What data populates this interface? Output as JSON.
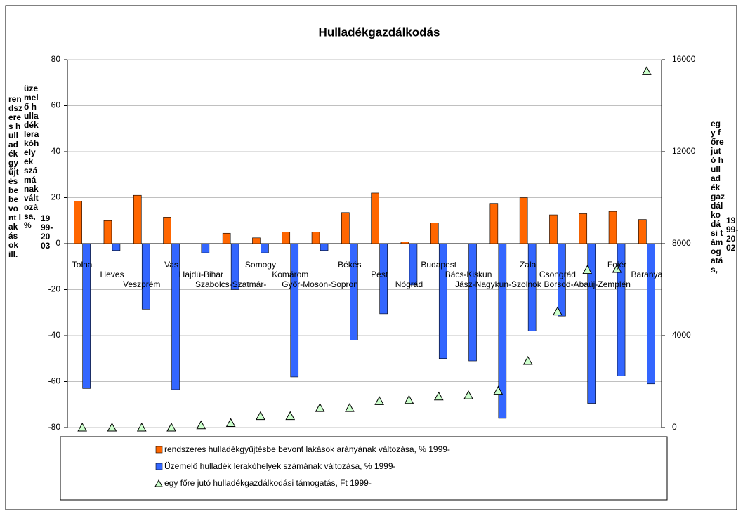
{
  "chart_data": {
    "type": "bar",
    "title": "Hulladékgazdálkodás",
    "y_label": [
      "rendszeres hulladékgyűjtésbe bevont lakások ill.",
      "üzemelő hulladéklerakóhelyek számának változása, %",
      "1999-2003"
    ],
    "y2_label": [
      "egy főre jutó hulladékgazdálkodási támogatás,",
      "1999-2002"
    ],
    "categories": [
      "Tolna",
      "Heves",
      "Veszprém",
      "Vas",
      "Hajdú-Bihar",
      "Szabolcs-Szatmár-",
      "Somogy",
      "Komárom",
      "Győr-Moson-Sopron",
      "Békés",
      "Pest",
      "Nógrád",
      "Budapest",
      "Bács-Kiskun",
      "Jász-Nagykun-Szolnok",
      "Zala",
      "Csongrád",
      "Borsod-Abaúj-Zemplén",
      "Fejér",
      "Baranya"
    ],
    "series": [
      {
        "name": "rendszeres hulladékgyűjtésbe bevont lakások arányának változása, % 1999-",
        "color": "#ff6600",
        "values": [
          18.5,
          10,
          21,
          11.5,
          0,
          4.5,
          2.5,
          5,
          5,
          13.5,
          22,
          0.8,
          9,
          0,
          17.5,
          20,
          12.5,
          13,
          14,
          10.5
        ]
      },
      {
        "name": "Üzemelő hulladék lerakóhelyek számának változása, % 1999-",
        "color": "#3366ff",
        "values": [
          -63,
          -3,
          -28.5,
          -63.5,
          -4,
          -20,
          -4,
          -58,
          -3,
          -42,
          -30.5,
          -18,
          -50,
          -51,
          -76,
          -38,
          -31.5,
          -69.5,
          -57.5,
          -61
        ]
      },
      {
        "name": "egy főre jutó hulladékgazdálkodási támogatás, Ft 1999-",
        "color": "#ccffcc",
        "axis": "y2",
        "marker": "triangle",
        "values": [
          0,
          0,
          0,
          0,
          100,
          200,
          500,
          500,
          850,
          850,
          1150,
          1200,
          1350,
          1400,
          1600,
          2900,
          5050,
          6850,
          6900,
          15500
        ]
      }
    ],
    "ylim": [
      -80,
      80
    ],
    "yticks": [
      -80,
      -60,
      -40,
      -20,
      0,
      20,
      40,
      60,
      80
    ],
    "y2lim": [
      0,
      16000
    ],
    "y2ticks": [
      0,
      4000,
      8000,
      12000,
      16000
    ],
    "grid": true
  }
}
